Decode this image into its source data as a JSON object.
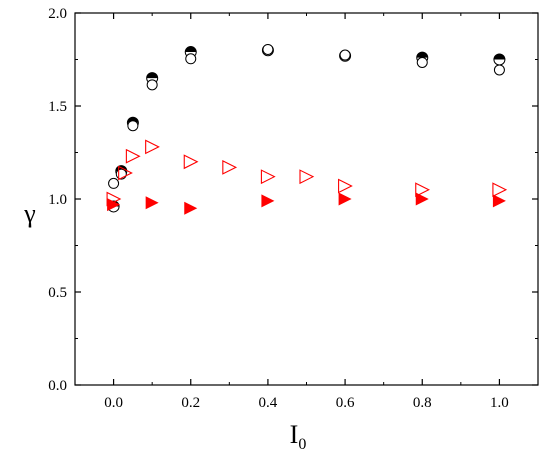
{
  "chart_data": {
    "type": "scatter",
    "xlabel": "I",
    "xlabel_subscript": "0",
    "ylabel": "γ",
    "xlim": [
      -0.1,
      1.1
    ],
    "ylim": [
      0.0,
      2.0
    ],
    "x_ticks": [
      0.0,
      0.2,
      0.4,
      0.6,
      0.8,
      1.0
    ],
    "x_tick_labels": [
      "0.0",
      "0.2",
      "0.4",
      "0.6",
      "0.8",
      "1.0"
    ],
    "y_ticks": [
      0.0,
      0.5,
      1.0,
      1.5,
      2.0
    ],
    "y_tick_labels": [
      "0.0",
      "0.5",
      "1.0",
      "1.5",
      "2.0"
    ],
    "grid": false,
    "legend": "none",
    "series": [
      {
        "marker": "half-filled-circle",
        "color": "#000000",
        "points": [
          [
            0.0,
            0.96
          ],
          [
            0.02,
            1.15
          ],
          [
            0.05,
            1.41
          ],
          [
            0.1,
            1.65
          ],
          [
            0.2,
            1.79
          ],
          [
            0.4,
            1.8
          ],
          [
            0.6,
            1.77
          ],
          [
            0.8,
            1.76
          ],
          [
            1.0,
            1.75
          ]
        ]
      },
      {
        "marker": "open-circle",
        "color": "#000000",
        "points": [
          [
            0.0,
            1.1
          ],
          [
            0.02,
            1.15
          ],
          [
            0.05,
            1.41
          ],
          [
            0.1,
            1.63
          ],
          [
            0.2,
            1.77
          ],
          [
            0.4,
            1.82
          ],
          [
            0.6,
            1.79
          ],
          [
            0.8,
            1.75
          ],
          [
            1.0,
            1.71
          ]
        ]
      },
      {
        "marker": "filled-right-triangle",
        "color": "#ff0000",
        "points": [
          [
            0.0,
            0.97
          ],
          [
            0.1,
            0.98
          ],
          [
            0.2,
            0.95
          ],
          [
            0.4,
            0.99
          ],
          [
            0.6,
            1.0
          ],
          [
            0.8,
            1.0
          ],
          [
            1.0,
            0.99
          ]
        ]
      },
      {
        "marker": "open-right-triangle",
        "color": "#ff0000",
        "points": [
          [
            0.0,
            1.0
          ],
          [
            0.03,
            1.14
          ],
          [
            0.05,
            1.23
          ],
          [
            0.1,
            1.28
          ],
          [
            0.2,
            1.2
          ],
          [
            0.3,
            1.17
          ],
          [
            0.4,
            1.12
          ],
          [
            0.5,
            1.12
          ],
          [
            0.6,
            1.07
          ],
          [
            0.8,
            1.05
          ],
          [
            1.0,
            1.05
          ]
        ]
      }
    ]
  }
}
